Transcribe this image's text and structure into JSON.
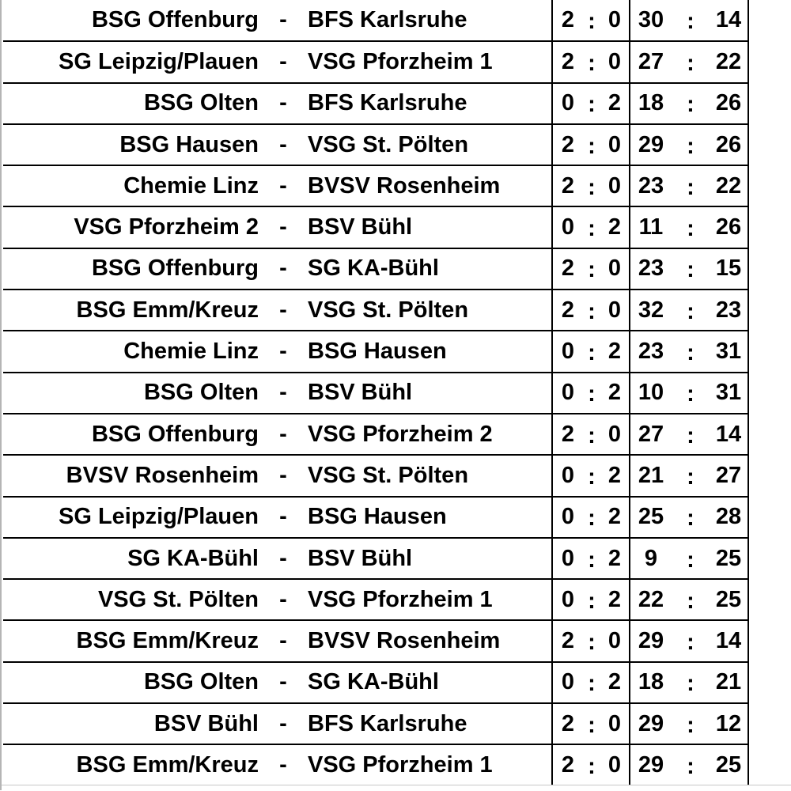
{
  "separator": "-",
  "score_separator": ":",
  "matches": [
    {
      "home": "BSG Offenburg",
      "away": "BFS Karlsruhe",
      "pts_home": "2",
      "pts_away": "0",
      "goals_home": "30",
      "goals_away": "14"
    },
    {
      "home": "SG Leipzig/Plauen",
      "away": "VSG Pforzheim 1",
      "pts_home": "2",
      "pts_away": "0",
      "goals_home": "27",
      "goals_away": "22"
    },
    {
      "home": "BSG Olten",
      "away": "BFS Karlsruhe",
      "pts_home": "0",
      "pts_away": "2",
      "goals_home": "18",
      "goals_away": "26"
    },
    {
      "home": "BSG Hausen",
      "away": "VSG St. Pölten",
      "pts_home": "2",
      "pts_away": "0",
      "goals_home": "29",
      "goals_away": "26"
    },
    {
      "home": "Chemie Linz",
      "away": "BVSV Rosenheim",
      "pts_home": "2",
      "pts_away": "0",
      "goals_home": "23",
      "goals_away": "22"
    },
    {
      "home": "VSG Pforzheim 2",
      "away": "BSV Bühl",
      "pts_home": "0",
      "pts_away": "2",
      "goals_home": "11",
      "goals_away": "26"
    },
    {
      "home": "BSG Offenburg",
      "away": "SG KA-Bühl",
      "pts_home": "2",
      "pts_away": "0",
      "goals_home": "23",
      "goals_away": "15"
    },
    {
      "home": "BSG Emm/Kreuz",
      "away": "VSG St. Pölten",
      "pts_home": "2",
      "pts_away": "0",
      "goals_home": "32",
      "goals_away": "23"
    },
    {
      "home": "Chemie Linz",
      "away": "BSG Hausen",
      "pts_home": "0",
      "pts_away": "2",
      "goals_home": "23",
      "goals_away": "31"
    },
    {
      "home": "BSG Olten",
      "away": "BSV Bühl",
      "pts_home": "0",
      "pts_away": "2",
      "goals_home": "10",
      "goals_away": "31"
    },
    {
      "home": "BSG Offenburg",
      "away": "VSG Pforzheim 2",
      "pts_home": "2",
      "pts_away": "0",
      "goals_home": "27",
      "goals_away": "14"
    },
    {
      "home": "BVSV Rosenheim",
      "away": "VSG St. Pölten",
      "pts_home": "0",
      "pts_away": "2",
      "goals_home": "21",
      "goals_away": "27"
    },
    {
      "home": "SG Leipzig/Plauen",
      "away": "BSG Hausen",
      "pts_home": "0",
      "pts_away": "2",
      "goals_home": "25",
      "goals_away": "28"
    },
    {
      "home": "SG KA-Bühl",
      "away": "BSV Bühl",
      "pts_home": "0",
      "pts_away": "2",
      "goals_home": "9",
      "goals_away": "25"
    },
    {
      "home": "VSG St. Pölten",
      "away": "VSG Pforzheim 1",
      "pts_home": "0",
      "pts_away": "2",
      "goals_home": "22",
      "goals_away": "25"
    },
    {
      "home": "BSG Emm/Kreuz",
      "away": "BVSV Rosenheim",
      "pts_home": "2",
      "pts_away": "0",
      "goals_home": "29",
      "goals_away": "14"
    },
    {
      "home": "BSG Olten",
      "away": "SG KA-Bühl",
      "pts_home": "0",
      "pts_away": "2",
      "goals_home": "18",
      "goals_away": "21"
    },
    {
      "home": "BSV Bühl",
      "away": "BFS Karlsruhe",
      "pts_home": "2",
      "pts_away": "0",
      "goals_home": "29",
      "goals_away": "12"
    },
    {
      "home": "BSG Emm/Kreuz",
      "away": "VSG Pforzheim 1",
      "pts_home": "2",
      "pts_away": "0",
      "goals_home": "29",
      "goals_away": "25"
    }
  ]
}
